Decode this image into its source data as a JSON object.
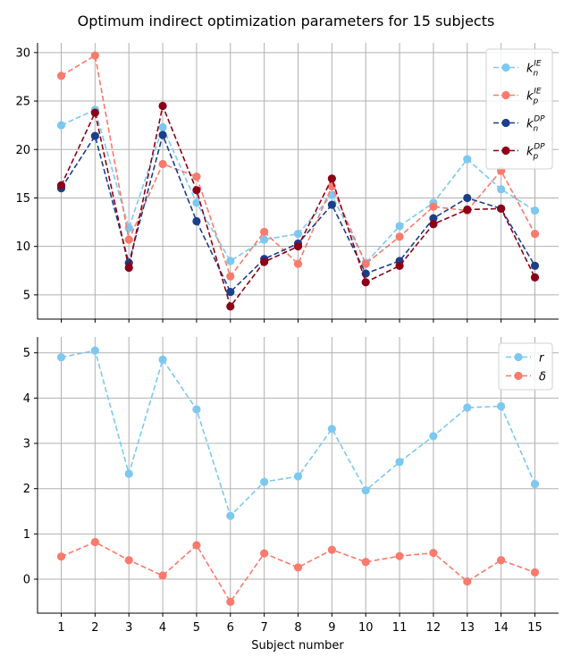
{
  "chart_data": {
    "title": "Optimum indirect optimization parameters for 15 subjects",
    "xlabel": "Subject number",
    "x": [
      1,
      2,
      3,
      4,
      5,
      6,
      7,
      8,
      9,
      10,
      11,
      12,
      13,
      14,
      15
    ],
    "panels": [
      {
        "type": "line",
        "ylim": [
          2.5,
          31
        ],
        "yticks": [
          5,
          10,
          15,
          20,
          25,
          30
        ],
        "grid": true,
        "legend_position": "top-right",
        "series": [
          {
            "name": "k_n^IE",
            "sub": "n",
            "sup": "IE",
            "color": "#7dc8f0",
            "values": [
              22.5,
              24.1,
              11.9,
              22.3,
              14.5,
              8.5,
              10.7,
              11.3,
              15.3,
              8.3,
              12.1,
              14.5,
              19.0,
              15.9,
              13.7
            ]
          },
          {
            "name": "k_p^IE",
            "sub": "p",
            "sup": "IE",
            "color": "#fa7a6c",
            "values": [
              27.6,
              29.7,
              10.7,
              18.5,
              17.2,
              6.9,
              11.5,
              8.2,
              16.2,
              8.2,
              11.0,
              14.1,
              13.7,
              17.8,
              11.3
            ]
          },
          {
            "name": "k_n^DP",
            "sub": "n",
            "sup": "DP",
            "color": "#1b3f8b",
            "values": [
              16.0,
              21.4,
              8.3,
              21.5,
              12.6,
              5.3,
              8.7,
              10.3,
              14.3,
              7.2,
              8.5,
              12.9,
              15.0,
              13.9,
              8.0
            ]
          },
          {
            "name": "k_p^DP",
            "sub": "p",
            "sup": "DP",
            "color": "#8b0016",
            "values": [
              16.3,
              23.8,
              7.8,
              24.5,
              15.8,
              3.8,
              8.4,
              10.0,
              17.0,
              6.3,
              8.0,
              12.3,
              13.8,
              13.9,
              6.8
            ]
          }
        ]
      },
      {
        "type": "line",
        "ylim": [
          -0.75,
          5.35
        ],
        "yticks": [
          0,
          1,
          2,
          3,
          4,
          5
        ],
        "grid": true,
        "legend_position": "top-right",
        "series": [
          {
            "name": "r",
            "color": "#7dc8f0",
            "values": [
              4.9,
              5.05,
              2.33,
              4.85,
              3.75,
              1.4,
              2.15,
              2.27,
              3.32,
              1.96,
              2.59,
              3.16,
              3.79,
              3.82,
              2.1
            ]
          },
          {
            "name": "δ",
            "color": "#fa7a6c",
            "values": [
              0.5,
              0.82,
              0.42,
              0.08,
              0.75,
              -0.5,
              0.57,
              0.26,
              0.65,
              0.38,
              0.51,
              0.58,
              -0.05,
              0.42,
              0.15
            ]
          }
        ]
      }
    ]
  }
}
